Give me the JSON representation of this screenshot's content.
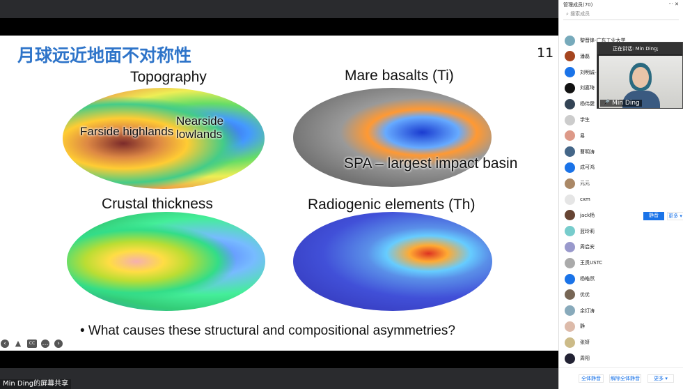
{
  "slide": {
    "title": "月球远近地面不对称性",
    "page_number": "11",
    "captions": {
      "topography": "Topography",
      "mare": "Mare basalts (Ti)",
      "crustal": "Crustal thickness",
      "radiogenic": "Radiogenic elements (Th)"
    },
    "labels": {
      "farside": "Farside highlands",
      "nearside": "Nearside lowlands",
      "spa": "SPA – largest impact basin"
    },
    "bullet": "• What causes these structural and compositional asymmetries?",
    "controls": [
      "prev-icon",
      "pen-icon",
      "cc-icon",
      "more-icon",
      "next-icon"
    ],
    "cc": "CC"
  },
  "share_label": "Min Ding的屏幕共享",
  "panel": {
    "title": "管理成员(70)",
    "search_placeholder": "搜索成员",
    "members": [
      {
        "name": "黎晋锋-广东工业大学",
        "color": "#7ab"
      },
      {
        "name": "潘磊",
        "color": "#a5451f"
      },
      {
        "name": "刘明诚-开",
        "color": "#1a73e8"
      },
      {
        "name": "刘嘉琦",
        "color": "#111"
      },
      {
        "name": "杨伟健",
        "color": "#345"
      },
      {
        "name": "学生",
        "color": "#ccc"
      },
      {
        "name": "易",
        "color": "#d98"
      },
      {
        "name": "曹明涛",
        "color": "#468"
      },
      {
        "name": "成可鸿",
        "color": "#1a73e8"
      },
      {
        "name": "元元",
        "color": "#a86"
      },
      {
        "name": "cxm",
        "color": "#e5e5e5"
      },
      {
        "name": "jack杨",
        "color": "#643"
      },
      {
        "name": "蓝玲莉",
        "color": "#7cc"
      },
      {
        "name": "周启安",
        "color": "#99c"
      },
      {
        "name": "王贯USTC",
        "color": "#aaa"
      },
      {
        "name": "杨皓然",
        "color": "#1a73e8"
      },
      {
        "name": "优优",
        "color": "#765"
      },
      {
        "name": "余灯涛",
        "color": "#8ab"
      },
      {
        "name": "静",
        "color": "#dba"
      },
      {
        "name": "张妍",
        "color": "#cb8"
      },
      {
        "name": "周阳",
        "color": "#223"
      }
    ],
    "row_action": "静音",
    "row_more": "更多 ▾",
    "mute_all": "全体静音",
    "unmute_all": "解除全体静音",
    "more": "更多 ▾"
  },
  "video": {
    "speaking": "正在讲话: Min Ding;",
    "name": "Min Ding"
  }
}
